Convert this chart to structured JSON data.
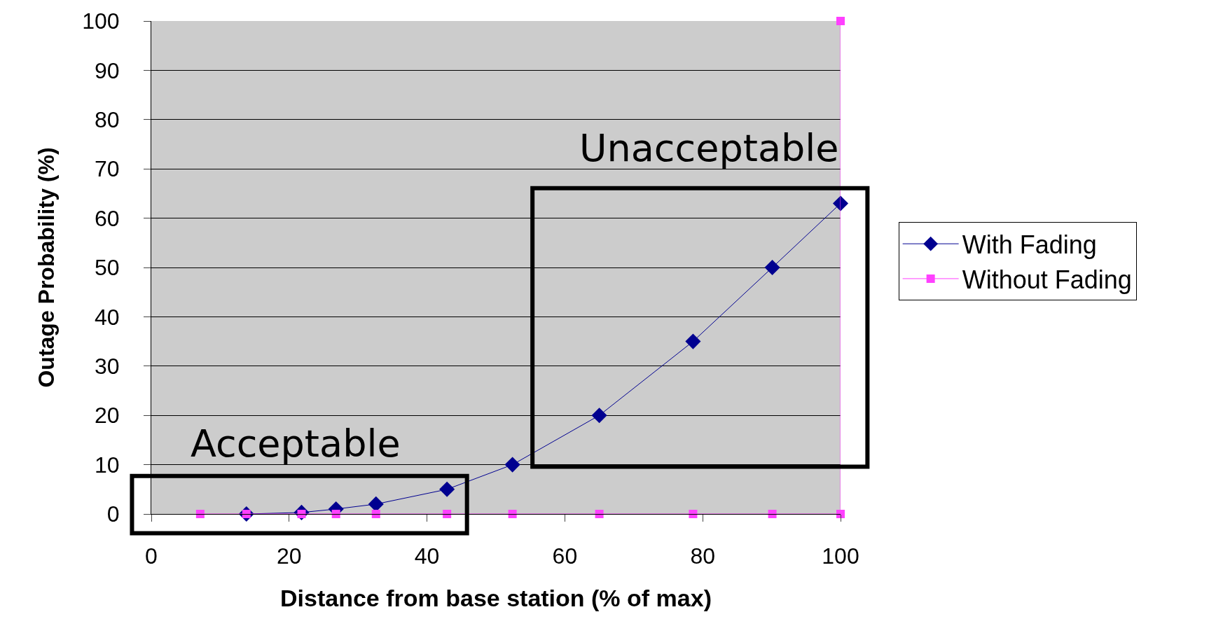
{
  "chart_data": {
    "type": "line",
    "xlabel": "Distance from base station (% of max)",
    "ylabel": "Outage Probability (%)",
    "xlim": [
      0,
      100
    ],
    "xticks": [
      0,
      20,
      40,
      60,
      80,
      100
    ],
    "ylim": [
      0,
      100
    ],
    "yticks": [
      0,
      10,
      20,
      30,
      40,
      50,
      60,
      70,
      80,
      90,
      100
    ],
    "grid": "y",
    "legend": "right",
    "annotations": [
      "Acceptable",
      "Unacceptable"
    ],
    "series": [
      {
        "name": "With Fading",
        "color": "#000090",
        "marker": "diamond",
        "x": [
          13.8,
          21.8,
          26.8,
          32.6,
          42.9,
          52.4,
          65.0,
          78.6,
          90.1,
          100
        ],
        "values": [
          0,
          0.3,
          1,
          2,
          5,
          10,
          20,
          35,
          50,
          63
        ]
      },
      {
        "name": "Without Fading",
        "color": "#ff40ff",
        "marker": "square",
        "x": [
          7.1,
          13.8,
          21.8,
          26.8,
          32.6,
          42.9,
          52.4,
          65.0,
          78.6,
          90.1,
          100,
          100
        ],
        "values": [
          0,
          0,
          0,
          0,
          0,
          0,
          0,
          0,
          0,
          0,
          0,
          100
        ]
      }
    ]
  }
}
